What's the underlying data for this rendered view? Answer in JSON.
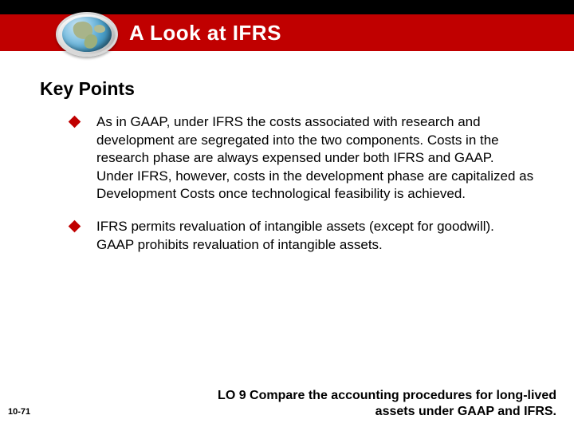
{
  "colors": {
    "title_bar": "#c00000",
    "top_stripe": "#000000",
    "bullet_diamond": "#c00000",
    "background": "#ffffff",
    "text": "#000000"
  },
  "title": "A Look at IFRS",
  "subheading": "Key Points",
  "bullets": [
    "As in GAAP, under IFRS the costs associated with research and development are segregated into the two components. Costs in the research phase are always expensed under both IFRS and GAAP. Under IFRS, however, costs in the development phase are capitalized as Development Costs once technological feasibility is achieved.",
    "IFRS permits revaluation of intangible assets (except for goodwill). GAAP prohibits revaluation of intangible assets."
  ],
  "footer": {
    "page": "10-71",
    "learning_objective": "LO 9  Compare the accounting procedures for long-lived assets under GAAP and IFRS."
  }
}
